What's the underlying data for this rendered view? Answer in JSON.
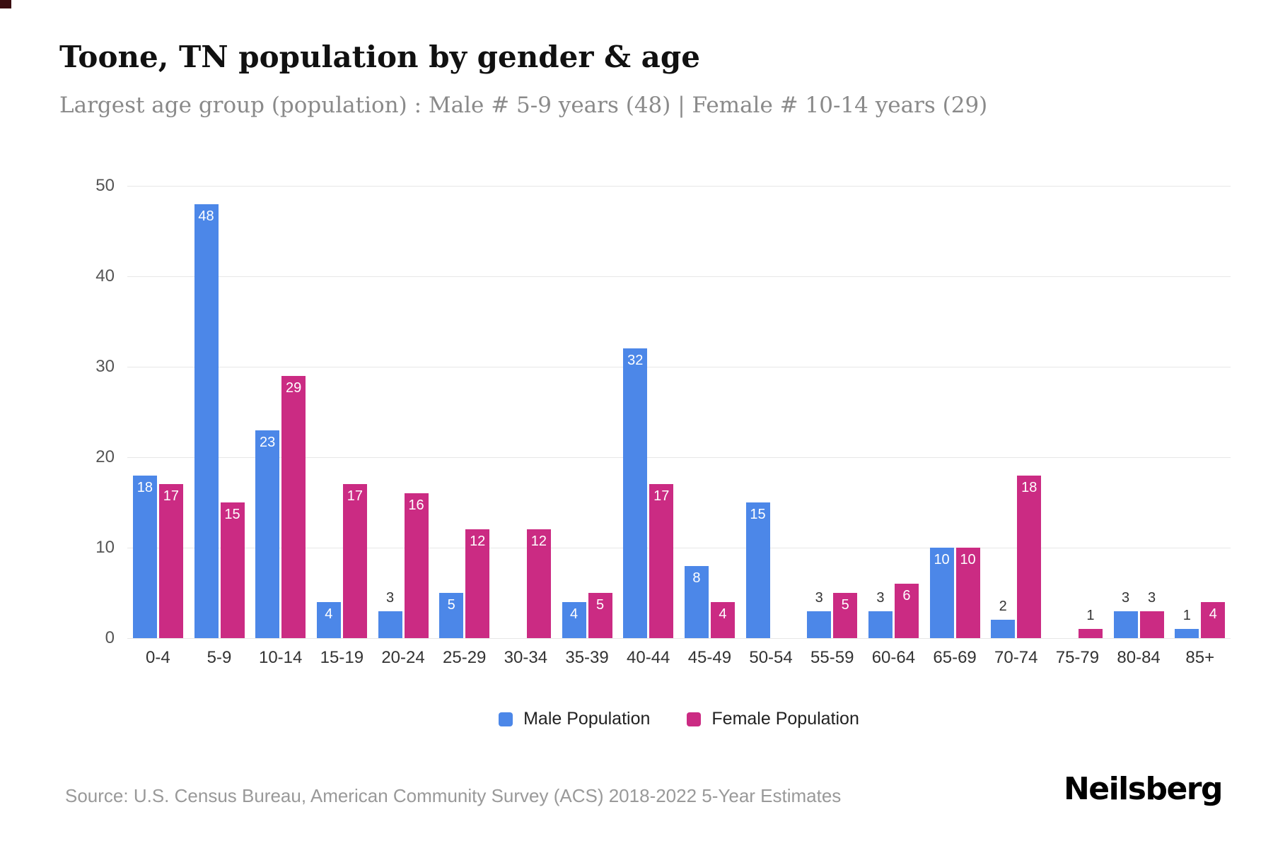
{
  "header": {
    "title": "Toone, TN population by gender & age",
    "subtitle": "Largest age group (population) : Male # 5-9 years (48) | Female # 10-14 years (29)"
  },
  "chart_data": {
    "type": "bar",
    "title": "Toone, TN population by gender & age",
    "categories": [
      "0-4",
      "5-9",
      "10-14",
      "15-19",
      "20-24",
      "25-29",
      "30-34",
      "35-39",
      "40-44",
      "45-49",
      "50-54",
      "55-59",
      "60-64",
      "65-69",
      "70-74",
      "75-79",
      "80-84",
      "85+"
    ],
    "series": [
      {
        "name": "Male Population",
        "color": "#4c87e8",
        "values": [
          18,
          48,
          23,
          4,
          3,
          5,
          0,
          4,
          32,
          8,
          15,
          3,
          3,
          10,
          2,
          0,
          3,
          1
        ]
      },
      {
        "name": "Female Population",
        "color": "#cb2b83",
        "values": [
          17,
          15,
          29,
          17,
          16,
          12,
          12,
          5,
          17,
          4,
          0,
          5,
          6,
          10,
          18,
          1,
          3,
          4
        ]
      }
    ],
    "xlabel": "",
    "ylabel": "",
    "ylim": [
      0,
      50
    ],
    "yticks": [
      0,
      10,
      20,
      30,
      40,
      50
    ],
    "grid": true,
    "legend_position": "bottom",
    "inside_label_threshold": 4
  },
  "footer": {
    "source": "Source: U.S. Census Bureau, American Community Survey (ACS) 2018-2022 5-Year Estimates",
    "brand": "Neilsberg"
  }
}
